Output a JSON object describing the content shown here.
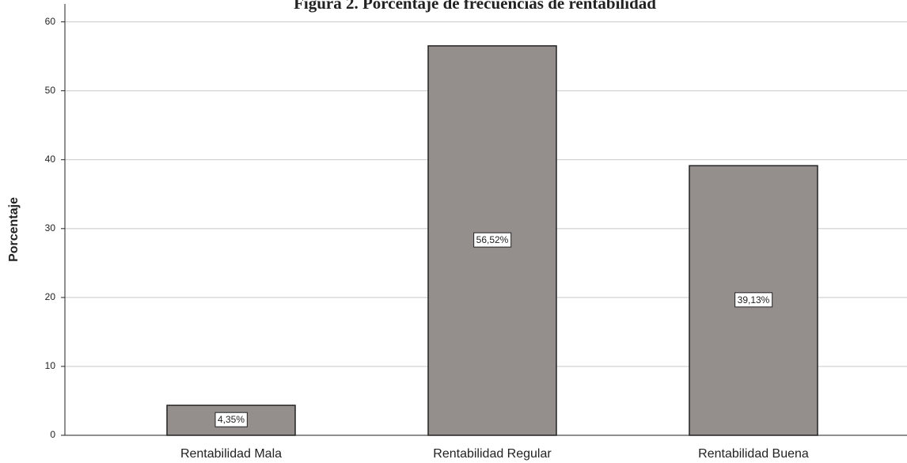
{
  "chart_data": {
    "type": "bar",
    "title": "Figura 2. Porcentaje de frecuencias de rentabilidad",
    "y_label": "Porcentaje",
    "categories": [
      "Rentabilidad Mala",
      "Rentabilidad Regular",
      "Rentabilidad Buena"
    ],
    "values": [
      4.35,
      56.52,
      39.13
    ],
    "value_labels": [
      "4,35%",
      "56,52%",
      "39,13%"
    ],
    "color": "#948f8c",
    "ylim": [
      0,
      62.6
    ],
    "yticks": [
      0,
      10,
      20,
      30,
      40,
      50,
      60
    ],
    "grid": true
  }
}
